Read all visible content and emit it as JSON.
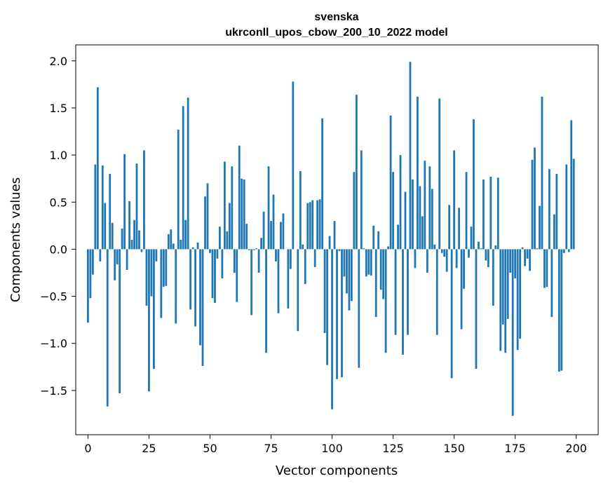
{
  "chart_data": {
    "type": "bar",
    "title_lines": [
      "svenska",
      "ukrconll_upos_cbow_200_10_2022 model"
    ],
    "xlabel": "Vector components",
    "ylabel": "Components values",
    "xlim": [
      -5,
      209
    ],
    "ylim": [
      -1.97,
      2.17
    ],
    "xticks": [
      0,
      25,
      50,
      75,
      100,
      125,
      150,
      175,
      200
    ],
    "yticks": [
      -1.5,
      -1.0,
      -0.5,
      0.0,
      0.5,
      1.0,
      1.5,
      2.0
    ],
    "ytick_labels": [
      "−1.5",
      "−1.0",
      "−0.5",
      "0.0",
      "0.5",
      "1.0",
      "1.5",
      "2.0"
    ],
    "bar_color": "#1f77b4",
    "bar_width": 0.8,
    "values": [
      -0.78,
      -0.52,
      -0.27,
      0.9,
      1.72,
      -0.13,
      0.89,
      0.49,
      -1.67,
      0.8,
      0.28,
      -0.33,
      -0.16,
      -1.53,
      0.22,
      1.01,
      -0.22,
      0.51,
      0.1,
      0.31,
      0.91,
      0.2,
      -0.03,
      1.05,
      -0.6,
      -1.51,
      -0.5,
      -1.27,
      -0.13,
      0.0,
      -0.73,
      -0.4,
      -0.39,
      0.16,
      0.21,
      0.06,
      -0.79,
      1.27,
      0.1,
      1.52,
      0.31,
      1.61,
      -0.64,
      0.02,
      -0.82,
      0.07,
      -1.02,
      -1.24,
      0.56,
      0.7,
      -0.04,
      -0.52,
      -0.57,
      -0.1,
      0.24,
      -0.31,
      0.93,
      0.19,
      0.49,
      0.88,
      -0.25,
      -0.56,
      1.1,
      0.75,
      0.74,
      0.27,
      -0.01,
      -0.7,
      -0.01,
      0.01,
      -0.25,
      0.12,
      0.4,
      -1.1,
      0.88,
      0.3,
      0.58,
      -0.13,
      -0.68,
      0.29,
      0.38,
      0.0,
      -0.63,
      -0.21,
      1.78,
      0.0,
      -0.87,
      0.83,
      0.05,
      -0.37,
      0.49,
      0.5,
      0.52,
      -0.19,
      0.52,
      0.53,
      1.39,
      -0.89,
      -1.23,
      0.14,
      -1.7,
      0.3,
      -1.38,
      -0.02,
      -1.36,
      -0.29,
      -0.47,
      -0.65,
      -0.55,
      0.82,
      1.64,
      -1.26,
      1.05,
      0.01,
      -0.29,
      -0.27,
      -0.28,
      0.25,
      -0.72,
      0.19,
      -0.43,
      -0.53,
      -1.1,
      0.03,
      1.42,
      0.82,
      -0.91,
      0.26,
      1.0,
      -1.12,
      0.61,
      -0.91,
      1.99,
      0.74,
      -0.2,
      1.62,
      0.67,
      0.35,
      0.94,
      -0.25,
      0.88,
      0.64,
      0.05,
      -0.91,
      1.6,
      -0.04,
      -0.08,
      -0.24,
      0.47,
      -1.37,
      1.05,
      -0.2,
      0.44,
      -0.85,
      -0.42,
      0.82,
      -0.09,
      0.24,
      1.38,
      -1.27,
      0.08,
      0.01,
      0.74,
      -0.12,
      -0.19,
      0.77,
      -0.6,
      0.04,
      0.76,
      -1.08,
      -0.8,
      -1.1,
      -0.74,
      -0.25,
      -1.77,
      -0.31,
      -1.07,
      -0.95,
      0.02,
      -0.18,
      -0.1,
      -0.23,
      0.95,
      1.08,
      0.01,
      0.46,
      1.62,
      -0.41,
      -0.4,
      0.85,
      -0.72,
      0.37,
      0.8,
      -1.3,
      -1.29,
      -0.04,
      0.9,
      -0.03,
      1.37,
      0.96
    ]
  }
}
